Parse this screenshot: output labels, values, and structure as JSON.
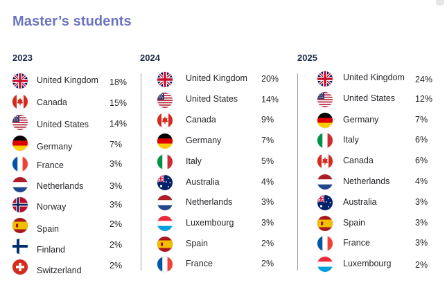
{
  "title": "Master’s students",
  "columns": [
    {
      "year": "2023",
      "rows": [
        {
          "country": "United Kingdom",
          "pct": "18%",
          "flag": "uk-flag-icon"
        },
        {
          "country": "Canada",
          "pct": "15%",
          "flag": "canada-flag-icon"
        },
        {
          "country": "United States",
          "pct": "14%",
          "flag": "us-flag-icon"
        },
        {
          "country": "Germany",
          "pct": "7%",
          "flag": "germany-flag-icon"
        },
        {
          "country": "France",
          "pct": "3%",
          "flag": "france-flag-icon"
        },
        {
          "country": "Netherlands",
          "pct": "3%",
          "flag": "netherlands-flag-icon"
        },
        {
          "country": "Norway",
          "pct": "3%",
          "flag": "norway-flag-icon"
        },
        {
          "country": "Spain",
          "pct": "2%",
          "flag": "spain-flag-icon"
        },
        {
          "country": "Finland",
          "pct": "2%",
          "flag": "finland-flag-icon"
        },
        {
          "country": "Switzerland",
          "pct": "2%",
          "flag": "switzerland-flag-icon"
        }
      ]
    },
    {
      "year": "2024",
      "rows": [
        {
          "country": "United Kingdom",
          "pct": "20%",
          "flag": "uk-flag-icon"
        },
        {
          "country": "United States",
          "pct": "14%",
          "flag": "us-flag-icon"
        },
        {
          "country": "Canada",
          "pct": "9%",
          "flag": "canada-flag-icon"
        },
        {
          "country": "Germany",
          "pct": "7%",
          "flag": "germany-flag-icon"
        },
        {
          "country": "Italy",
          "pct": "5%",
          "flag": "italy-flag-icon"
        },
        {
          "country": "Australia",
          "pct": "4%",
          "flag": "australia-flag-icon"
        },
        {
          "country": "Netherlands",
          "pct": "3%",
          "flag": "netherlands-flag-icon"
        },
        {
          "country": "Luxembourg",
          "pct": "3%",
          "flag": "luxembourg-flag-icon"
        },
        {
          "country": "Spain",
          "pct": "2%",
          "flag": "spain-flag-icon"
        },
        {
          "country": "France",
          "pct": "2%",
          "flag": "france-flag-icon"
        }
      ]
    },
    {
      "year": "2025",
      "rows": [
        {
          "country": "United Kingdom",
          "pct": "24%",
          "flag": "uk-flag-icon"
        },
        {
          "country": "United States",
          "pct": "12%",
          "flag": "us-flag-icon"
        },
        {
          "country": "Germany",
          "pct": "7%",
          "flag": "germany-flag-icon"
        },
        {
          "country": "Italy",
          "pct": "6%",
          "flag": "italy-flag-icon"
        },
        {
          "country": "Canada",
          "pct": "6%",
          "flag": "canada-flag-icon"
        },
        {
          "country": "Netherlands",
          "pct": "4%",
          "flag": "netherlands-flag-icon"
        },
        {
          "country": "Australia",
          "pct": "3%",
          "flag": "australia-flag-icon"
        },
        {
          "country": "Spain",
          "pct": "3%",
          "flag": "spain-flag-icon"
        },
        {
          "country": "France",
          "pct": "3%",
          "flag": "france-flag-icon"
        },
        {
          "country": "Luxembourg",
          "pct": "2%",
          "flag": "luxembourg-flag-icon"
        }
      ]
    }
  ]
}
